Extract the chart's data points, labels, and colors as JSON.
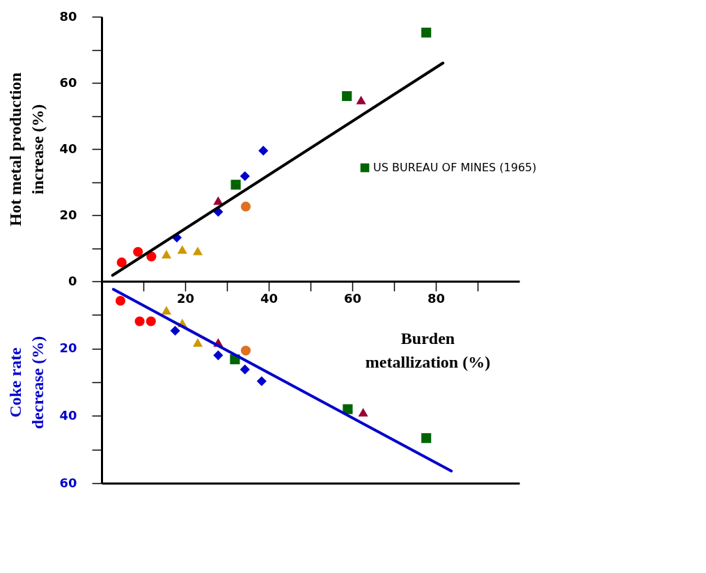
{
  "chart_data": [
    {
      "type": "scatter",
      "ylabel": "Hot metal production increase (%)",
      "xlabel": "Burden metallization (%)",
      "xlim": [
        0,
        100
      ],
      "ylim": [
        0,
        80
      ],
      "xticks": [
        {
          "value": 10,
          "label": null
        },
        20,
        {
          "value": 30,
          "label": null
        },
        40,
        {
          "value": 50,
          "label": null
        },
        60,
        {
          "value": 70,
          "label": null
        },
        80,
        {
          "value": 90,
          "label": null
        }
      ],
      "yticks": [
        0,
        {
          "value": 10,
          "label": null
        },
        20,
        {
          "value": 30,
          "label": null
        },
        40,
        {
          "value": 50,
          "label": null
        },
        60,
        {
          "value": 70,
          "label": null
        },
        80
      ],
      "legend": "right",
      "series": [
        {
          "name": "US BUREAU OF MINES (1965)",
          "color": "#006400",
          "marker": "square",
          "x": [
            32.1,
            58.7,
            77.7
          ],
          "values": [
            29.2,
            56,
            75.2
          ]
        },
        {
          "color": "#990033",
          "marker": "triangle",
          "x": [
            27.9,
            62.1
          ],
          "values": [
            24.4,
            54.8
          ]
        },
        {
          "color": "#e07020",
          "marker": "circle",
          "x": [
            34.5
          ],
          "values": [
            22.6
          ]
        },
        {
          "color": "#cc9900",
          "marker": "triangle",
          "x": [
            15.5,
            19.3,
            23.0
          ],
          "values": [
            8.2,
            9.6,
            9.2
          ]
        },
        {
          "color": "#ff0000",
          "marker": "circle",
          "x": [
            4.8,
            8.7,
            11.9
          ],
          "values": [
            5.7,
            8.9,
            7.5
          ]
        },
        {
          "color": "#0000cc",
          "marker": "diamond",
          "x": [
            18.0,
            27.9,
            34.3,
            38.7
          ],
          "values": [
            13.2,
            21,
            31.8,
            39.5
          ]
        },
        {
          "type": "line",
          "color": "#000000",
          "x": [
            2.6,
            81.7
          ],
          "values": [
            1.8,
            66
          ]
        }
      ]
    },
    {
      "type": "scatter",
      "ylabel": "Coke rate decrease (%)",
      "xlim": [
        0,
        100
      ],
      "ylim": [
        60,
        0
      ],
      "yticks": [
        {
          "value": 10,
          "label": null
        },
        20,
        {
          "value": 30,
          "label": null
        },
        40,
        {
          "value": 50,
          "label": null
        },
        60
      ],
      "tick_labels": "y",
      "series": [
        {
          "color": "#006400",
          "marker": "square",
          "x": [
            31.9,
            58.9,
            77.7
          ],
          "values": [
            23.2,
            38,
            46.6
          ]
        },
        {
          "color": "#990033",
          "marker": "triangle",
          "x": [
            27.9,
            62.6
          ],
          "values": [
            18.2,
            38.9
          ]
        },
        {
          "color": "#e07020",
          "marker": "circle",
          "x": [
            34.5
          ],
          "values": [
            20.6
          ]
        },
        {
          "color": "#cc9900",
          "marker": "triangle",
          "x": [
            15.5,
            19.3,
            23.0
          ],
          "values": [
            8.6,
            12.4,
            18.2
          ]
        },
        {
          "color": "#ff0000",
          "marker": "circle",
          "x": [
            4.5,
            9.1,
            11.8
          ],
          "values": [
            5.8,
            11.9,
            11.9
          ]
        },
        {
          "color": "#0000cc",
          "marker": "diamond",
          "x": [
            17.6,
            27.9,
            34.3,
            38.3
          ],
          "values": [
            14.7,
            22,
            26.2,
            29.7
          ]
        },
        {
          "type": "line",
          "color": "#0000cc",
          "x": [
            2.8,
            83.7
          ],
          "values": [
            2.4,
            56.4
          ]
        }
      ]
    }
  ]
}
